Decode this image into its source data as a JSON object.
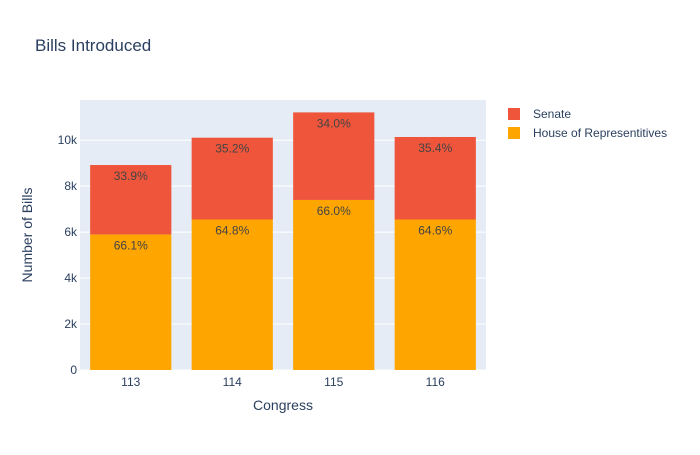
{
  "chart_data": {
    "type": "bar",
    "barmode": "stack",
    "title": "Bills Introduced",
    "xlabel": "Congress",
    "ylabel": "Number of Bills",
    "categories": [
      "113",
      "114",
      "115",
      "116"
    ],
    "series": [
      {
        "name": "House of Representitives",
        "color": "#ffa500",
        "values": [
          5900,
          6550,
          7400,
          6550
        ],
        "labels": [
          "66.1%",
          "64.8%",
          "66.0%",
          "64.6%"
        ]
      },
      {
        "name": "Senate",
        "color": "#ef553b",
        "values": [
          3020,
          3560,
          3810,
          3590
        ],
        "labels": [
          "33.9%",
          "35.2%",
          "34.0%",
          "35.4%"
        ]
      }
    ],
    "ylim": [
      0,
      11750
    ],
    "yticks": [
      0,
      2000,
      4000,
      6000,
      8000,
      10000
    ],
    "ytick_labels": [
      "0",
      "2k",
      "4k",
      "6k",
      "8k",
      "10k"
    ],
    "grid": true,
    "legend_position": "top-right",
    "legend_order": [
      "Senate",
      "House of Representitives"
    ],
    "plot_bg": "#e5ecf6"
  }
}
